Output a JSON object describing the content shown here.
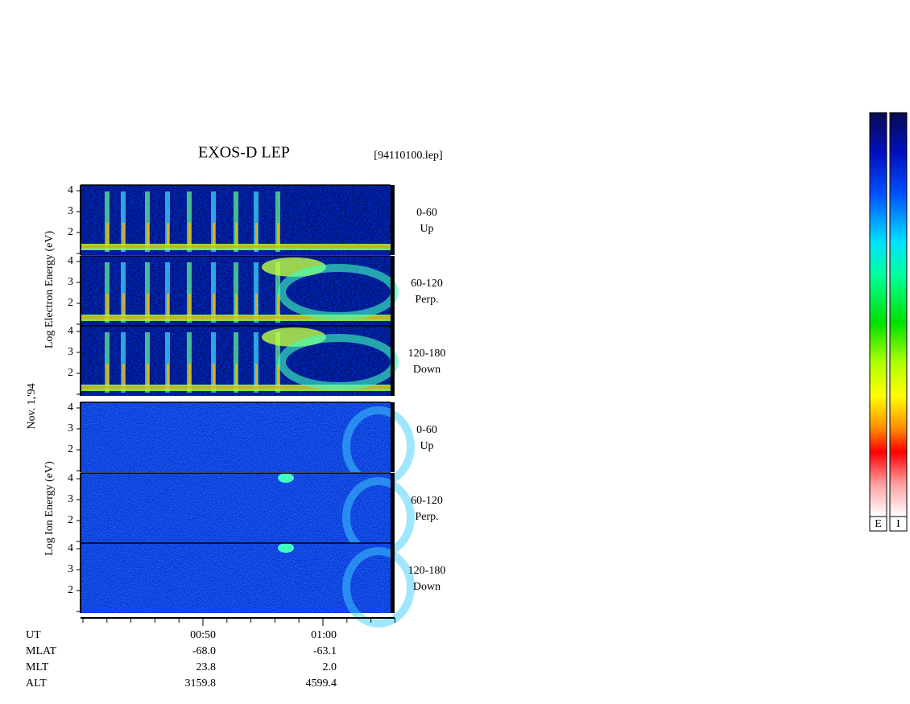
{
  "title": "EXOS-D LEP",
  "file": "[94110100.lep]",
  "date": "Nov. 1,'94",
  "electron_axis_label": "Log  Electron  Energy (eV)",
  "ion_axis_label": "Log  Ion  Energy (eV)",
  "energy_ticks": [
    "4",
    "3",
    "2"
  ],
  "panels": [
    {
      "species": "electron",
      "angle": "0-60",
      "direction": "Up"
    },
    {
      "species": "electron",
      "angle": "60-120",
      "direction": "Perp."
    },
    {
      "species": "electron",
      "angle": "120-180",
      "direction": "Down"
    },
    {
      "species": "ion",
      "angle": "0-60",
      "direction": "Up"
    },
    {
      "species": "ion",
      "angle": "60-120",
      "direction": "Perp."
    },
    {
      "species": "ion",
      "angle": "120-180",
      "direction": "Down"
    }
  ],
  "footer": {
    "labels": [
      "UT",
      "MLAT",
      "MLT",
      "ALT"
    ],
    "columns": [
      [
        "00:50",
        "-68.0",
        "23.8",
        "3159.8"
      ],
      [
        "01:00",
        "-63.1",
        "2.0",
        "4599.4"
      ]
    ]
  },
  "colorbars": [
    "E",
    "I"
  ]
}
